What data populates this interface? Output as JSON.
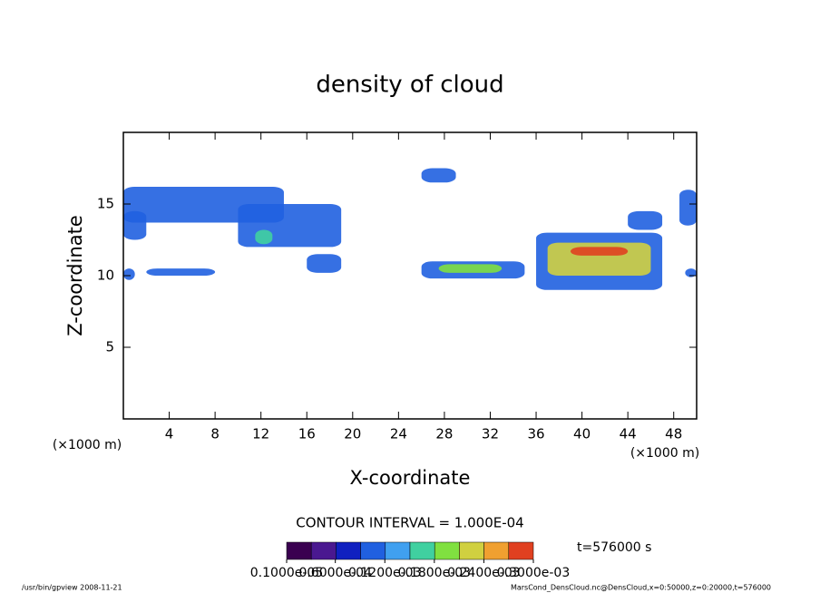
{
  "chart_data": {
    "type": "contour",
    "title": "density of cloud",
    "x_label": "X-coordinate",
    "y_label": "Z-coordinate",
    "x_unit": "(×1000 m)",
    "y_unit": "(×1000 m)",
    "xlim": [
      0,
      50
    ],
    "ylim": [
      0,
      20
    ],
    "xticks": [
      4,
      8,
      12,
      16,
      20,
      24,
      28,
      32,
      36,
      40,
      44,
      48
    ],
    "yticks": [
      5,
      10,
      15
    ],
    "patches": [
      {
        "x": [
          0,
          14
        ],
        "z": [
          13.7,
          16.2
        ],
        "value": 0.0001
      },
      {
        "x": [
          10,
          19
        ],
        "z": [
          12,
          15
        ],
        "value": 0.00012
      },
      {
        "x": [
          11.5,
          13
        ],
        "z": [
          12.2,
          13.2
        ],
        "value": 0.00018
      },
      {
        "x": [
          0,
          2
        ],
        "z": [
          12.5,
          14.5
        ],
        "value": 0.0001
      },
      {
        "x": [
          0,
          1
        ],
        "z": [
          9.7,
          10.5
        ],
        "value": 0.0001
      },
      {
        "x": [
          2,
          8
        ],
        "z": [
          10,
          10.5
        ],
        "value": 0.0001
      },
      {
        "x": [
          16,
          19
        ],
        "z": [
          10.2,
          11.5
        ],
        "value": 0.0001
      },
      {
        "x": [
          26,
          29
        ],
        "z": [
          16.5,
          17.5
        ],
        "value": 0.0001
      },
      {
        "x": [
          26,
          35
        ],
        "z": [
          9.8,
          11
        ],
        "value": 0.0001
      },
      {
        "x": [
          27.5,
          33
        ],
        "z": [
          10.2,
          10.8
        ],
        "value": 0.0002
      },
      {
        "x": [
          36,
          47
        ],
        "z": [
          9,
          13
        ],
        "value": 0.0001
      },
      {
        "x": [
          37,
          46
        ],
        "z": [
          10,
          12.3
        ],
        "value": 0.00022
      },
      {
        "x": [
          39,
          44
        ],
        "z": [
          11.4,
          12
        ],
        "value": 0.0003
      },
      {
        "x": [
          44,
          47
        ],
        "z": [
          13.2,
          14.5
        ],
        "value": 0.00012
      },
      {
        "x": [
          48.5,
          50
        ],
        "z": [
          13.5,
          16
        ],
        "value": 0.0001
      },
      {
        "x": [
          49,
          50
        ],
        "z": [
          9.9,
          10.5
        ],
        "value": 0.0001
      }
    ],
    "contour_interval": "CONTOUR INTERVAL = 1.000E-04",
    "time_label": "t=576000 s",
    "colorbar": {
      "colors": [
        "#3a0050",
        "#4a1890",
        "#1020c0",
        "#2060e0",
        "#40a0f0",
        "#40d0a0",
        "#80e040",
        "#d0d040",
        "#f0a030",
        "#e04020"
      ],
      "lim": [
        1e-06,
        0.0003
      ],
      "ticks": [
        {
          "value": 1e-06,
          "label": "0.1000e-05"
        },
        {
          "value": 6e-05,
          "label": "0.6000e-04"
        },
        {
          "value": 0.00012,
          "label": "0.1200e-03"
        },
        {
          "value": 0.00018,
          "label": "0.1800e-03"
        },
        {
          "value": 0.00024,
          "label": "0.2400e-03"
        },
        {
          "value": 0.0003,
          "label": "0.3000e-03"
        }
      ]
    },
    "footer_left": "/usr/bin/gpview   2008-11-21",
    "footer_right": "MarsCond_DensCloud.nc@DensCloud,x=0:50000,z=0:20000,t=576000"
  }
}
